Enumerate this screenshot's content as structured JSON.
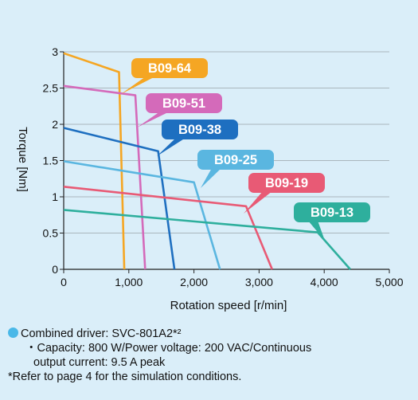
{
  "chart_data": {
    "type": "line",
    "xlabel": "Rotation speed [r/min]",
    "ylabel": "Torque [Nm]",
    "xlim": [
      0,
      5000
    ],
    "ylim": [
      0,
      3
    ],
    "x_ticks": [
      "0",
      "1,000",
      "2,000",
      "3,000",
      "4,000",
      "5,000"
    ],
    "y_ticks": [
      "0",
      "0.5",
      "1",
      "1.5",
      "2",
      "2.5",
      "3"
    ],
    "grid": "horizontal",
    "series": [
      {
        "name": "B09-64",
        "color": "#f5a623",
        "points": [
          [
            0,
            2.98
          ],
          [
            850,
            2.72
          ],
          [
            930,
            0
          ]
        ]
      },
      {
        "name": "B09-51",
        "color": "#d46aba",
        "points": [
          [
            0,
            2.53
          ],
          [
            1100,
            2.4
          ],
          [
            1250,
            0
          ]
        ]
      },
      {
        "name": "B09-38",
        "color": "#1e6fc0",
        "points": [
          [
            0,
            1.95
          ],
          [
            1450,
            1.63
          ],
          [
            1700,
            0
          ]
        ]
      },
      {
        "name": "B09-25",
        "color": "#5ab6e0",
        "points": [
          [
            0,
            1.49
          ],
          [
            2000,
            1.2
          ],
          [
            2400,
            0
          ]
        ]
      },
      {
        "name": "B09-19",
        "color": "#e85a75",
        "points": [
          [
            0,
            1.14
          ],
          [
            2800,
            0.87
          ],
          [
            3200,
            0
          ]
        ]
      },
      {
        "name": "B09-13",
        "color": "#2eaf9d",
        "points": [
          [
            0,
            0.82
          ],
          [
            3900,
            0.51
          ],
          [
            4400,
            0
          ]
        ]
      }
    ]
  },
  "notes": {
    "driver": "Combined driver: SVC-801A2*²",
    "capacity_line1": "・Capacity: 800 W/Power voltage: 200 VAC/Continuous",
    "capacity_line2": "output current: 9.5 A peak",
    "refer": "*Refer to page 4 for the simulation conditions."
  }
}
